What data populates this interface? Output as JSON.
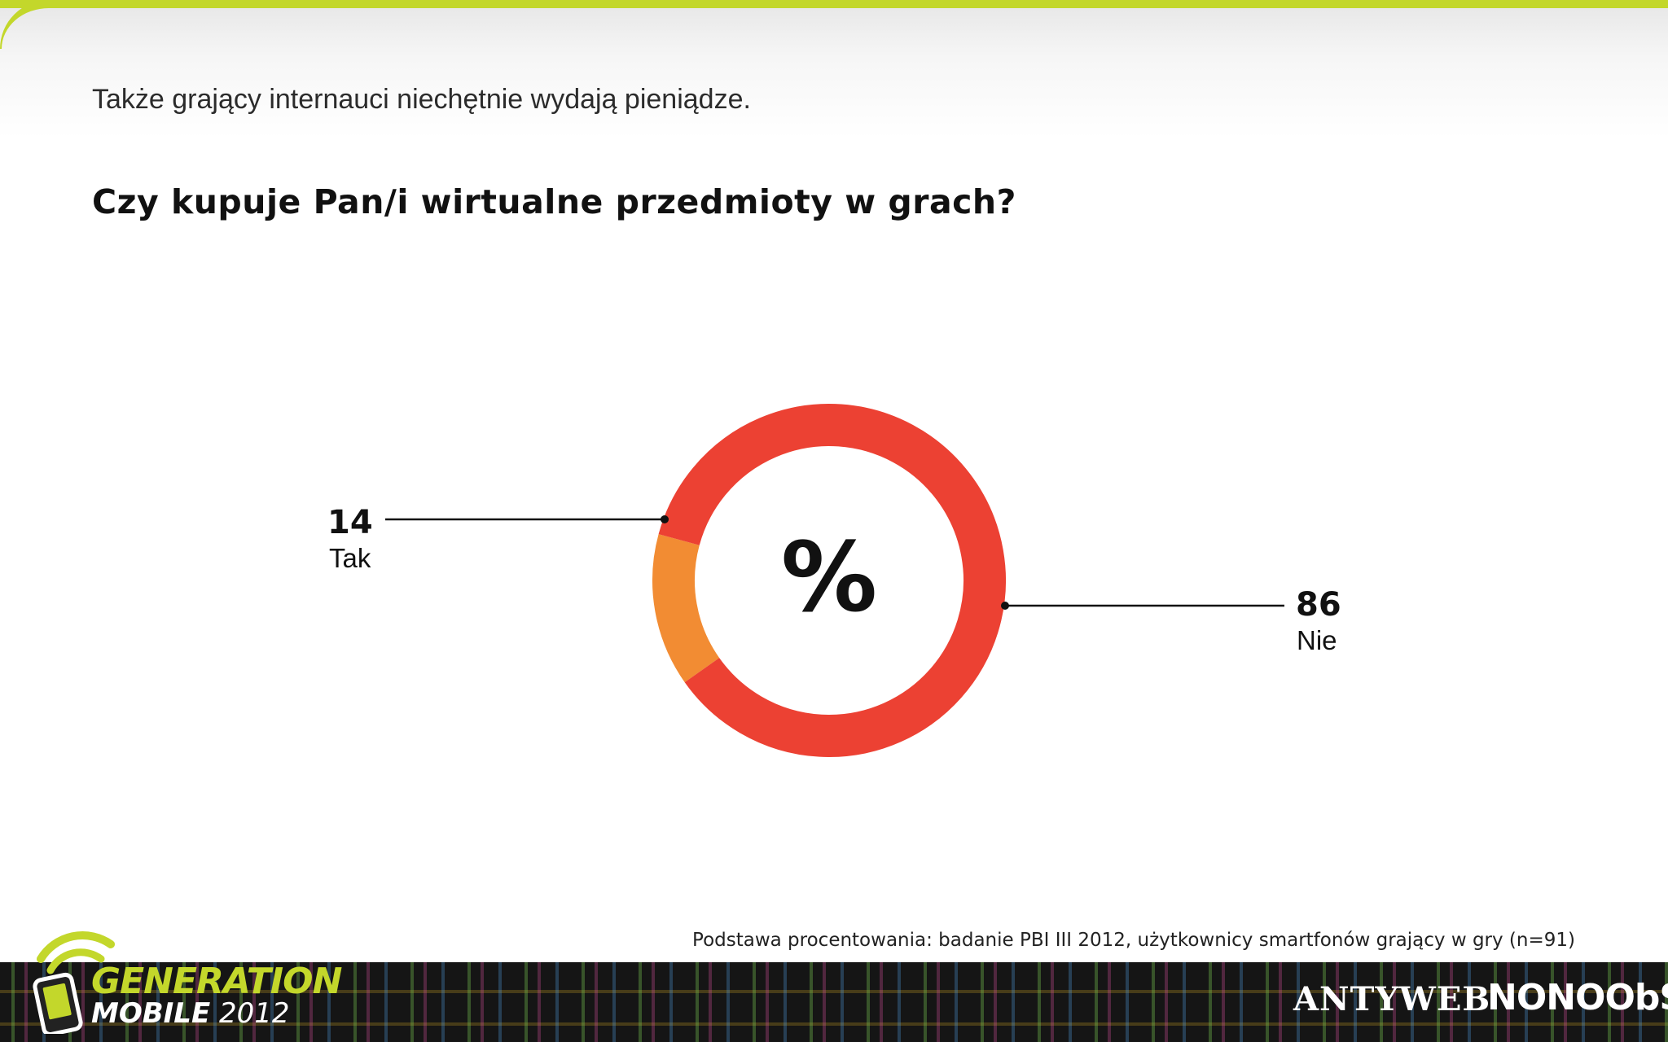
{
  "header": {
    "subtitle": "Także grający internauci niechętnie wydają pieniądze."
  },
  "chart_data": {
    "type": "pie",
    "title": "Czy kupuje Pan/i wirtualne przedmioty w grach?",
    "center_label": "%",
    "slices": [
      {
        "label": "Tak",
        "value": 14,
        "display": "14",
        "color": "#f28c33"
      },
      {
        "label": "Nie",
        "value": 86,
        "display": "86",
        "color": "#ec4133"
      }
    ],
    "unit": "%",
    "legend": "none"
  },
  "footer": {
    "source": "Podstawa procentowania: badanie PBI III 2012, użytkownicy smartfonów grający w gry (n=91)",
    "logo_line1": "GENERATION",
    "logo_line2_bold": "MOBILE",
    "logo_line2_year": "2012",
    "partner1": "ANTYWEB",
    "partner2": "NONOObS",
    "logo_icon": "phone-signal-icon"
  },
  "colors": {
    "accent": "#c3d72b",
    "tak": "#f28c33",
    "nie": "#ec4133"
  }
}
